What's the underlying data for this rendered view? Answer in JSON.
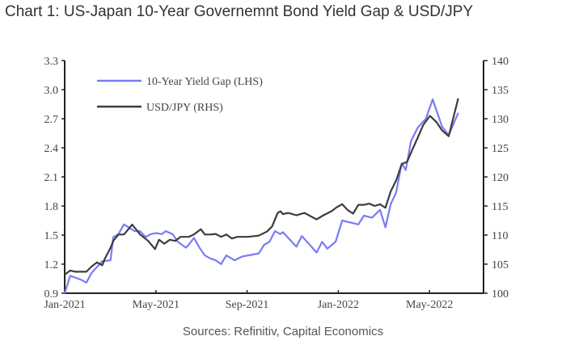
{
  "chart_data": {
    "type": "line",
    "title": "Chart 1: US-Japan 10-Year Governemnt Bond Yield Gap & USD/JPY",
    "source": "Sources: Refinitiv, Capital Economics",
    "x_unit": "months since Jan-2021",
    "xlim": [
      0,
      18.37
    ],
    "x_ticks": [
      {
        "v": 0,
        "label": "Jan-2021"
      },
      {
        "v": 4,
        "label": "May-2021"
      },
      {
        "v": 8,
        "label": "Sep-2021"
      },
      {
        "v": 12,
        "label": "Jan-2022"
      },
      {
        "v": 16,
        "label": "May-2022"
      }
    ],
    "y_left": {
      "lim": [
        0.9,
        3.3
      ],
      "ticks": [
        "0.9",
        "1.2",
        "1.5",
        "1.8",
        "2.1",
        "2.4",
        "2.7",
        "3.0",
        "3.3"
      ]
    },
    "y_right": {
      "lim": [
        100,
        140
      ],
      "ticks": [
        "100",
        "105",
        "110",
        "115",
        "120",
        "125",
        "130",
        "135",
        "140"
      ]
    },
    "legend_placement": "top-left",
    "series": [
      {
        "name": "10-Year Yield Gap (LHS)",
        "axis": "left",
        "color": "#7b7bf5",
        "points": [
          [
            0,
            0.9
          ],
          [
            0.24,
            1.08
          ],
          [
            0.71,
            1.04
          ],
          [
            0.95,
            1.01
          ],
          [
            1.18,
            1.11
          ],
          [
            1.65,
            1.23
          ],
          [
            2.01,
            1.24
          ],
          [
            2.13,
            1.48
          ],
          [
            2.36,
            1.51
          ],
          [
            2.6,
            1.61
          ],
          [
            3.07,
            1.54
          ],
          [
            3.31,
            1.54
          ],
          [
            3.55,
            1.48
          ],
          [
            3.78,
            1.51
          ],
          [
            4.02,
            1.52
          ],
          [
            4.26,
            1.51
          ],
          [
            4.43,
            1.54
          ],
          [
            4.73,
            1.51
          ],
          [
            4.96,
            1.43
          ],
          [
            5.32,
            1.37
          ],
          [
            5.44,
            1.4
          ],
          [
            5.67,
            1.47
          ],
          [
            5.91,
            1.37
          ],
          [
            6.15,
            1.29
          ],
          [
            6.38,
            1.26
          ],
          [
            6.62,
            1.24
          ],
          [
            6.86,
            1.2
          ],
          [
            7.09,
            1.29
          ],
          [
            7.45,
            1.24
          ],
          [
            7.8,
            1.28
          ],
          [
            8.28,
            1.3
          ],
          [
            8.51,
            1.31
          ],
          [
            8.75,
            1.4
          ],
          [
            8.98,
            1.43
          ],
          [
            9.22,
            1.54
          ],
          [
            9.46,
            1.51
          ],
          [
            9.57,
            1.53
          ],
          [
            10.16,
            1.38
          ],
          [
            10.4,
            1.49
          ],
          [
            11.05,
            1.32
          ],
          [
            11.29,
            1.43
          ],
          [
            11.52,
            1.36
          ],
          [
            11.88,
            1.43
          ],
          [
            12.17,
            1.65
          ],
          [
            12.88,
            1.61
          ],
          [
            13.12,
            1.7
          ],
          [
            13.48,
            1.68
          ],
          [
            13.83,
            1.76
          ],
          [
            14.07,
            1.58
          ],
          [
            14.3,
            1.82
          ],
          [
            14.54,
            1.94
          ],
          [
            14.78,
            2.24
          ],
          [
            14.96,
            2.17
          ],
          [
            15.19,
            2.47
          ],
          [
            15.49,
            2.61
          ],
          [
            15.84,
            2.7
          ],
          [
            16.14,
            2.9
          ],
          [
            16.55,
            2.62
          ],
          [
            16.84,
            2.53
          ],
          [
            17.26,
            2.76
          ]
        ]
      },
      {
        "name": "USD/JPY (RHS)",
        "axis": "right",
        "color": "#3c3c3c",
        "points": [
          [
            0,
            103.2
          ],
          [
            0.24,
            103.9
          ],
          [
            0.47,
            103.7
          ],
          [
            0.95,
            103.7
          ],
          [
            1.18,
            104.6
          ],
          [
            1.42,
            105.3
          ],
          [
            1.65,
            104.8
          ],
          [
            1.77,
            106.0
          ],
          [
            2.01,
            107.8
          ],
          [
            2.13,
            109.0
          ],
          [
            2.36,
            110.1
          ],
          [
            2.6,
            110.1
          ],
          [
            2.96,
            111.8
          ],
          [
            3.31,
            110.1
          ],
          [
            3.66,
            109.0
          ],
          [
            3.96,
            107.6
          ],
          [
            4.14,
            109.2
          ],
          [
            4.37,
            108.5
          ],
          [
            4.61,
            109.2
          ],
          [
            4.85,
            109.0
          ],
          [
            5.08,
            109.7
          ],
          [
            5.44,
            109.7
          ],
          [
            5.67,
            110.1
          ],
          [
            5.97,
            111.0
          ],
          [
            6.15,
            110.1
          ],
          [
            6.38,
            110.1
          ],
          [
            6.62,
            110.2
          ],
          [
            6.86,
            109.7
          ],
          [
            7.09,
            110.1
          ],
          [
            7.33,
            109.4
          ],
          [
            7.57,
            109.7
          ],
          [
            8.04,
            109.7
          ],
          [
            8.51,
            109.9
          ],
          [
            8.87,
            110.6
          ],
          [
            9.1,
            111.5
          ],
          [
            9.34,
            113.8
          ],
          [
            9.46,
            114.1
          ],
          [
            9.57,
            113.6
          ],
          [
            9.8,
            113.8
          ],
          [
            10.16,
            113.4
          ],
          [
            10.52,
            113.8
          ],
          [
            11.05,
            112.7
          ],
          [
            11.35,
            113.4
          ],
          [
            11.7,
            114.1
          ],
          [
            11.94,
            114.8
          ],
          [
            12.17,
            115.3
          ],
          [
            12.41,
            114.3
          ],
          [
            12.65,
            113.7
          ],
          [
            12.88,
            115.2
          ],
          [
            13.12,
            115.2
          ],
          [
            13.36,
            115.4
          ],
          [
            13.6,
            115.0
          ],
          [
            13.83,
            115.3
          ],
          [
            14.07,
            114.7
          ],
          [
            14.3,
            117.5
          ],
          [
            14.54,
            119.4
          ],
          [
            14.78,
            122.2
          ],
          [
            15.02,
            122.6
          ],
          [
            15.25,
            124.7
          ],
          [
            15.49,
            126.8
          ],
          [
            15.72,
            128.9
          ],
          [
            16.02,
            130.5
          ],
          [
            16.31,
            129.4
          ],
          [
            16.55,
            128.0
          ],
          [
            16.84,
            127.0
          ],
          [
            17.26,
            133.5
          ]
        ]
      }
    ]
  }
}
